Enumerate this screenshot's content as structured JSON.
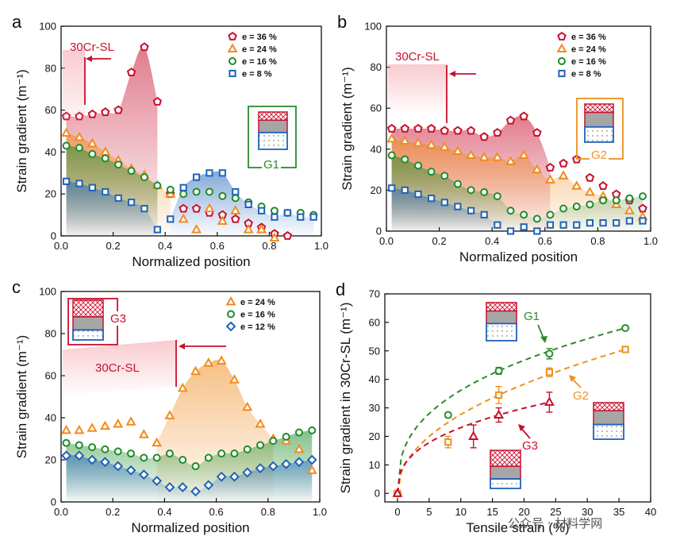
{
  "colors": {
    "c36": "#c8102e",
    "c24": "#f08c1e",
    "c16": "#1e8c28",
    "c8": "#1f63b8",
    "c12": "#1f63b8",
    "annRed": "#c8102e",
    "g1": "#2e8b2e",
    "g2": "#f0901e",
    "g3": "#c8102e"
  },
  "watermark": "公众号 · 材料学网",
  "chart_data": [
    {
      "id": "a",
      "type": "scatter",
      "panel_label": "a",
      "xlabel": "Normalized position",
      "ylabel": "Strain gradient (m⁻¹)",
      "xlim": [
        0,
        1
      ],
      "ylim": [
        0,
        100
      ],
      "xticks": [
        "0.0",
        "0.2",
        "0.4",
        "0.6",
        "0.8",
        "1.0"
      ],
      "yticks": [
        "0",
        "20",
        "40",
        "60",
        "80",
        "100"
      ],
      "legend": "top-right",
      "annotation": "30Cr-SL",
      "inset_label": "G1",
      "series": [
        {
          "name": "e = 36 %",
          "marker": "pentagon",
          "color": "#c8102e",
          "x": [
            0.02,
            0.07,
            0.12,
            0.17,
            0.22,
            0.27,
            0.32,
            0.37,
            0.42,
            0.47,
            0.52,
            0.57,
            0.62,
            0.67,
            0.72,
            0.77,
            0.82,
            0.87
          ],
          "y": [
            57,
            57,
            58,
            59,
            60,
            78,
            90,
            64,
            20,
            13,
            13,
            11,
            10,
            8,
            6,
            4,
            1,
            0
          ]
        },
        {
          "name": "e = 24 %",
          "marker": "triangle",
          "color": "#f08c1e",
          "x": [
            0.02,
            0.07,
            0.12,
            0.17,
            0.22,
            0.27,
            0.32,
            0.37,
            0.42,
            0.47,
            0.52,
            0.57,
            0.62,
            0.67,
            0.72,
            0.77,
            0.82
          ],
          "y": [
            49,
            47,
            44,
            40,
            36,
            32,
            29,
            24,
            20,
            8,
            3,
            13,
            7,
            12,
            3,
            3,
            -1
          ]
        },
        {
          "name": "e = 16 %",
          "marker": "circle",
          "color": "#1e8c28",
          "x": [
            0.02,
            0.07,
            0.12,
            0.17,
            0.22,
            0.27,
            0.32,
            0.37,
            0.42,
            0.47,
            0.52,
            0.57,
            0.62,
            0.67,
            0.72,
            0.77,
            0.82,
            0.87,
            0.92,
            0.97
          ],
          "y": [
            43,
            42,
            39,
            37,
            34,
            31,
            28,
            24,
            22,
            20,
            21,
            21,
            19,
            18,
            16,
            14,
            12,
            11,
            11,
            10
          ]
        },
        {
          "name": "e = 8 %",
          "marker": "square",
          "color": "#1f63b8",
          "x": [
            0.02,
            0.07,
            0.12,
            0.17,
            0.22,
            0.27,
            0.32,
            0.37,
            0.42,
            0.47,
            0.52,
            0.57,
            0.62,
            0.67,
            0.72,
            0.77,
            0.82,
            0.87,
            0.92,
            0.97
          ],
          "y": [
            26,
            25,
            23,
            21,
            18,
            16,
            13,
            3,
            8,
            23,
            28,
            30,
            30,
            21,
            15,
            12,
            9,
            11,
            9,
            9
          ]
        }
      ]
    },
    {
      "id": "b",
      "type": "scatter",
      "panel_label": "b",
      "xlabel": "Normalized position",
      "ylabel": "Strain gradient (m⁻¹)",
      "xlim": [
        0,
        1
      ],
      "ylim": [
        0,
        100
      ],
      "xticks": [
        "0.0",
        "0.2",
        "0.4",
        "0.6",
        "0.8",
        "1.0"
      ],
      "yticks": [
        "0",
        "20",
        "40",
        "60",
        "80",
        "100"
      ],
      "legend": "top-right",
      "annotation": "30Cr-SL",
      "inset_label": "G2",
      "series": [
        {
          "name": "e = 36 %",
          "marker": "pentagon",
          "color": "#c8102e",
          "x": [
            0.02,
            0.07,
            0.12,
            0.17,
            0.22,
            0.27,
            0.32,
            0.37,
            0.42,
            0.47,
            0.52,
            0.57,
            0.62,
            0.67,
            0.72,
            0.77,
            0.82,
            0.87,
            0.92,
            0.97
          ],
          "y": [
            50,
            50,
            50,
            50,
            49,
            49,
            49,
            46,
            48,
            54,
            56,
            48,
            31,
            33,
            35,
            26,
            22,
            18,
            15,
            11
          ]
        },
        {
          "name": "e = 24 %",
          "marker": "triangle",
          "color": "#f08c1e",
          "x": [
            0.02,
            0.07,
            0.12,
            0.17,
            0.22,
            0.27,
            0.32,
            0.37,
            0.42,
            0.47,
            0.52,
            0.57,
            0.62,
            0.67,
            0.72,
            0.77,
            0.82,
            0.87,
            0.92,
            0.97
          ],
          "y": [
            45,
            44,
            43,
            42,
            41,
            39,
            37,
            36,
            36,
            34,
            37,
            30,
            25,
            27,
            22,
            19,
            17,
            13,
            10,
            7
          ]
        },
        {
          "name": "e = 16 %",
          "marker": "circle",
          "color": "#1e8c28",
          "x": [
            0.02,
            0.07,
            0.12,
            0.17,
            0.22,
            0.27,
            0.32,
            0.37,
            0.42,
            0.47,
            0.52,
            0.57,
            0.62,
            0.67,
            0.72,
            0.77,
            0.82,
            0.87,
            0.92,
            0.97
          ],
          "y": [
            37,
            35,
            32,
            29,
            27,
            23,
            20,
            19,
            17,
            10,
            8,
            6,
            8,
            11,
            12,
            13,
            15,
            15,
            16,
            17
          ]
        },
        {
          "name": "e = 8 %",
          "marker": "square",
          "color": "#1f63b8",
          "x": [
            0.02,
            0.07,
            0.12,
            0.17,
            0.22,
            0.27,
            0.32,
            0.37,
            0.42,
            0.47,
            0.52,
            0.57,
            0.62,
            0.67,
            0.72,
            0.77,
            0.82,
            0.87,
            0.92,
            0.97
          ],
          "y": [
            21,
            20,
            18,
            16,
            14,
            12,
            10,
            8,
            3,
            0,
            2,
            0,
            3,
            3,
            3,
            4,
            4,
            4,
            5,
            5
          ]
        }
      ]
    },
    {
      "id": "c",
      "type": "scatter",
      "panel_label": "c",
      "xlabel": "Normalized position",
      "ylabel": "Strain gradient (m⁻¹)",
      "xlim": [
        0,
        1
      ],
      "ylim": [
        0,
        100
      ],
      "xticks": [
        "0.0",
        "0.2",
        "0.4",
        "0.6",
        "0.8",
        "1.0"
      ],
      "yticks": [
        "0",
        "20",
        "40",
        "60",
        "80",
        "100"
      ],
      "legend": "top-right",
      "annotation": "30Cr-SL",
      "inset_label": "G3",
      "series": [
        {
          "name": "e = 24 %",
          "marker": "triangle",
          "color": "#f08c1e",
          "x": [
            0.02,
            0.07,
            0.12,
            0.17,
            0.22,
            0.27,
            0.32,
            0.37,
            0.42,
            0.47,
            0.52,
            0.57,
            0.62,
            0.67,
            0.72,
            0.77,
            0.82,
            0.87,
            0.92,
            0.97
          ],
          "y": [
            34,
            34,
            35,
            36,
            37,
            38,
            32,
            28,
            41,
            54,
            62,
            66,
            67,
            58,
            45,
            37,
            30,
            29,
            25,
            15
          ]
        },
        {
          "name": "e = 16 %",
          "marker": "circle",
          "color": "#1e8c28",
          "x": [
            0.02,
            0.07,
            0.12,
            0.17,
            0.22,
            0.27,
            0.32,
            0.37,
            0.42,
            0.47,
            0.52,
            0.57,
            0.62,
            0.67,
            0.72,
            0.77,
            0.82,
            0.87,
            0.92,
            0.97
          ],
          "y": [
            28,
            27,
            26,
            25,
            24,
            23,
            21,
            21,
            23,
            20,
            17,
            21,
            23,
            23,
            25,
            27,
            29,
            31,
            33,
            34
          ]
        },
        {
          "name": "e = 12 %",
          "marker": "diamond",
          "color": "#1f63b8",
          "x": [
            0.02,
            0.07,
            0.12,
            0.17,
            0.22,
            0.27,
            0.32,
            0.37,
            0.42,
            0.47,
            0.52,
            0.57,
            0.62,
            0.67,
            0.72,
            0.77,
            0.82,
            0.87,
            0.92,
            0.97
          ],
          "y": [
            22,
            22,
            20,
            19,
            17,
            15,
            13,
            10,
            7,
            7,
            5,
            8,
            12,
            12,
            14,
            16,
            17,
            18,
            19,
            20
          ]
        }
      ]
    },
    {
      "id": "d",
      "type": "scatter",
      "panel_label": "d",
      "xlabel": "Tensile strain (%)",
      "ylabel": "Strain gradient in 30Cr-SL (m⁻¹)",
      "xlim": [
        -2,
        40
      ],
      "ylim": [
        -3,
        70
      ],
      "xticks": [
        "0",
        "5",
        "10",
        "15",
        "20",
        "25",
        "30",
        "35",
        "40"
      ],
      "yticks": [
        "0",
        "10",
        "20",
        "30",
        "40",
        "50",
        "60",
        "70"
      ],
      "series": [
        {
          "name": "G1",
          "marker": "circle",
          "color": "#2e8b2e",
          "x": [
            0,
            8,
            16,
            24,
            36
          ],
          "y": [
            0,
            27.5,
            43,
            49,
            58
          ],
          "err": [
            0,
            0.8,
            1.2,
            1.8,
            0.6
          ]
        },
        {
          "name": "G2",
          "marker": "square",
          "color": "#f0901e",
          "x": [
            0,
            8,
            16,
            24,
            36
          ],
          "y": [
            0,
            18,
            34.5,
            42.5,
            50.5
          ],
          "err": [
            0,
            2,
            3,
            1.5,
            0.6
          ]
        },
        {
          "name": "G3",
          "marker": "triangle",
          "color": "#c8102e",
          "x": [
            0,
            12,
            16,
            24
          ],
          "y": [
            0,
            20,
            27.5,
            32
          ],
          "err": [
            0,
            4,
            2.5,
            3.5
          ]
        }
      ]
    }
  ]
}
